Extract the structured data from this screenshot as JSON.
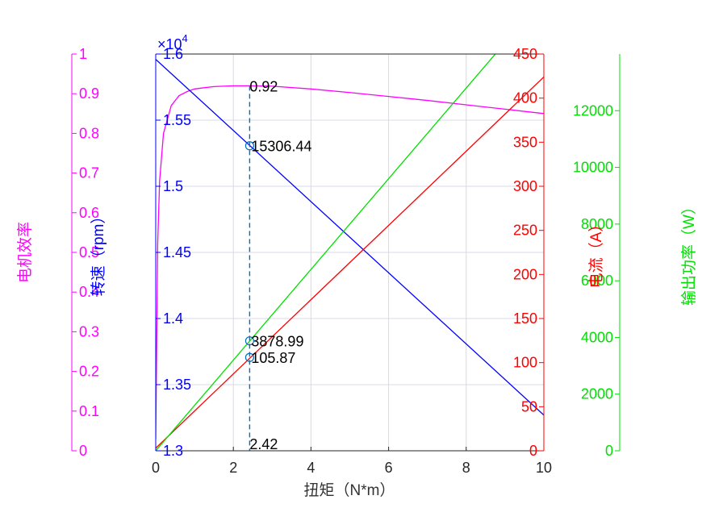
{
  "chart_data": {
    "type": "line",
    "title": "",
    "xlabel": "扭矩（N*m）",
    "xlim": [
      0,
      10
    ],
    "xticks": [
      "0",
      "2",
      "4",
      "6",
      "8",
      "10"
    ],
    "grid": true,
    "colors": {
      "efficiency": "#ff00ff",
      "speed": "#0000ff",
      "current": "#ff0000",
      "power": "#00e000",
      "marker": "#0072bd"
    },
    "axes": {
      "efficiency": {
        "label": "电机效率",
        "range": [
          0,
          1
        ],
        "ticks": [
          "0",
          "0.1",
          "0.2",
          "0.3",
          "0.4",
          "0.5",
          "0.6",
          "0.7",
          "0.8",
          "0.9",
          "1"
        ]
      },
      "speed": {
        "label": "转速（rpm）",
        "range": [
          13000,
          16000
        ],
        "ticks": [
          "1.3",
          "1.35",
          "1.4",
          "1.45",
          "1.5",
          "1.55",
          "1.6"
        ],
        "exponent_base": "×10",
        "exponent_power": "4"
      },
      "current": {
        "label": "电流（A）",
        "range": [
          0,
          450
        ],
        "ticks": [
          "0",
          "50",
          "100",
          "150",
          "200",
          "250",
          "300",
          "350",
          "400",
          "450"
        ]
      },
      "power": {
        "label": "输出功率（W）",
        "range": [
          0,
          14000
        ],
        "ticks": [
          "0",
          "2000",
          "4000",
          "6000",
          "8000",
          "10000",
          "12000"
        ]
      }
    },
    "series": [
      {
        "key": "efficiency",
        "axis": "efficiency",
        "x": [
          0,
          0.05,
          0.1,
          0.2,
          0.4,
          0.6,
          0.8,
          1.0,
          1.5,
          2.0,
          2.42,
          3,
          4,
          5,
          6,
          7,
          8,
          9,
          10
        ],
        "values": [
          0.03,
          0.52,
          0.68,
          0.8,
          0.87,
          0.895,
          0.905,
          0.912,
          0.918,
          0.92,
          0.92,
          0.919,
          0.912,
          0.903,
          0.893,
          0.883,
          0.872,
          0.861,
          0.85
        ]
      },
      {
        "key": "speed",
        "axis": "speed",
        "x": [
          0,
          10
        ],
        "values": [
          15960,
          13270
        ]
      },
      {
        "key": "current",
        "axis": "current",
        "x": [
          0,
          10
        ],
        "values": [
          3,
          424
        ]
      },
      {
        "key": "power",
        "axis": "power",
        "x": [
          0,
          10
        ],
        "values": [
          0,
          16000
        ]
      }
    ],
    "annotations": [
      {
        "text": "0.92",
        "axis": "efficiency",
        "x": 2.42,
        "y": 0.92,
        "marker": false
      },
      {
        "text": "15306.44",
        "axis": "speed",
        "x": 2.42,
        "y": 15306.44,
        "marker": true
      },
      {
        "text": "3878.99",
        "axis": "power",
        "x": 2.42,
        "y": 3878.99,
        "marker": true
      },
      {
        "text": "105.87",
        "axis": "current",
        "x": 2.42,
        "y": 105.87,
        "marker": true
      },
      {
        "text": "2.42",
        "axis": "current",
        "x": 2.42,
        "y": 0,
        "marker": false
      }
    ],
    "vline": {
      "x": 2.42
    }
  }
}
